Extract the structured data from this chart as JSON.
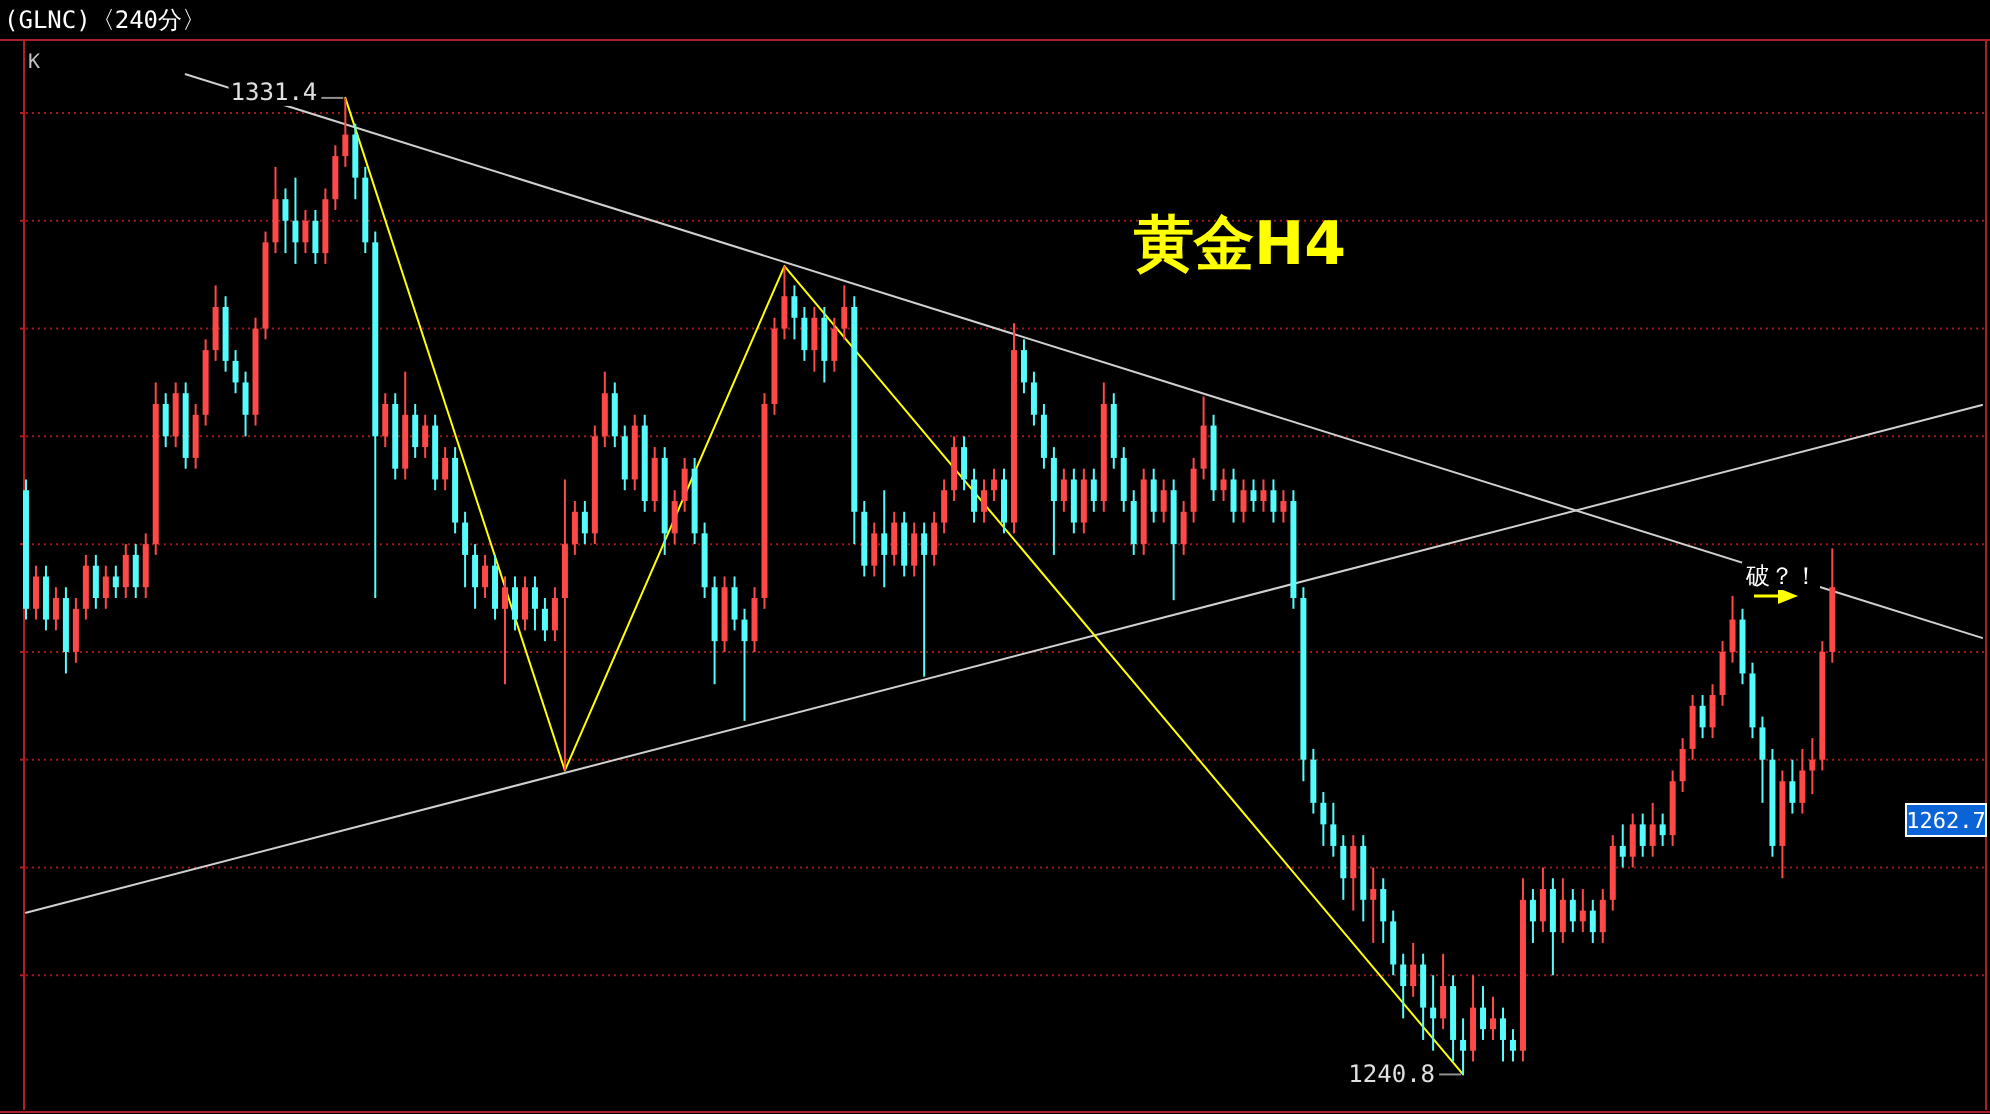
{
  "chart_data": {
    "type": "candlestick",
    "title": "(GLNC)〈240分〉",
    "subtitle": "黄金H4",
    "categories": [
      null,
      null,
      null,
      null,
      null,
      null,
      null,
      null,
      null,
      null,
      null,
      null,
      null,
      null,
      null,
      null,
      null,
      null,
      null,
      null,
      null,
      null,
      null,
      null,
      null,
      null,
      null,
      null,
      null,
      null,
      null,
      null,
      null,
      null,
      null,
      null,
      null,
      null,
      null,
      null,
      null,
      null,
      null,
      null,
      null,
      null,
      null,
      null,
      null,
      null,
      null,
      null,
      null,
      null,
      null,
      null,
      null,
      null,
      null,
      null,
      null,
      null,
      null,
      null,
      null,
      null,
      null,
      null,
      null,
      null,
      null,
      null,
      null,
      null,
      null,
      null,
      null,
      null,
      null,
      null,
      null,
      null,
      null,
      null,
      null,
      null,
      null,
      null,
      null,
      null,
      null,
      null,
      null,
      null,
      null,
      null,
      null,
      null,
      null,
      null,
      null,
      null,
      null,
      null,
      null,
      null,
      null,
      null,
      null,
      null,
      null,
      null,
      null,
      null,
      null,
      null,
      null,
      null,
      null,
      null,
      null,
      null,
      null,
      null,
      null,
      null,
      null,
      null,
      null,
      null,
      null,
      null,
      null,
      null,
      null,
      null,
      null,
      null,
      null,
      null,
      null,
      null,
      null,
      null,
      null,
      null,
      null,
      null,
      null,
      null,
      null,
      null,
      null,
      null,
      null,
      null,
      null,
      null,
      null,
      null,
      null,
      null,
      null,
      null,
      null,
      null,
      null,
      null,
      null,
      null,
      null,
      null,
      null,
      null,
      null,
      null,
      null,
      null,
      null,
      null,
      null,
      null,
      null,
      null,
      null,
      null,
      null,
      null,
      null,
      null,
      null,
      null,
      null,
      null,
      null,
      null,
      null
    ],
    "ohlc": [
      [
        1295,
        1296,
        1283,
        1284
      ],
      [
        1284,
        1288,
        1283,
        1287
      ],
      [
        1287,
        1288,
        1282,
        1283
      ],
      [
        1283,
        1286,
        1282,
        1285
      ],
      [
        1285,
        1286,
        1278,
        1280
      ],
      [
        1280,
        1285,
        1279,
        1284
      ],
      [
        1284,
        1289,
        1283,
        1288
      ],
      [
        1288,
        1289,
        1284,
        1285
      ],
      [
        1285,
        1288,
        1284,
        1287
      ],
      [
        1287,
        1288,
        1285,
        1286
      ],
      [
        1286,
        1290,
        1285,
        1289
      ],
      [
        1289,
        1290,
        1285,
        1286
      ],
      [
        1286,
        1291,
        1285,
        1290
      ],
      [
        1290,
        1305,
        1289,
        1303
      ],
      [
        1303,
        1304,
        1299,
        1300
      ],
      [
        1300,
        1305,
        1299,
        1304
      ],
      [
        1304,
        1305,
        1297,
        1298
      ],
      [
        1298,
        1303,
        1297,
        1302
      ],
      [
        1302,
        1309,
        1301,
        1308
      ],
      [
        1308,
        1314,
        1307,
        1312
      ],
      [
        1312,
        1313,
        1306,
        1307
      ],
      [
        1307,
        1308,
        1304,
        1305
      ],
      [
        1305,
        1306,
        1300,
        1302
      ],
      [
        1302,
        1311,
        1301,
        1310
      ],
      [
        1310,
        1319,
        1309,
        1318
      ],
      [
        1318,
        1325,
        1317,
        1322
      ],
      [
        1322,
        1323,
        1317,
        1320
      ],
      [
        1320,
        1324,
        1316,
        1318
      ],
      [
        1318,
        1321,
        1317,
        1320
      ],
      [
        1320,
        1321,
        1316,
        1317
      ],
      [
        1317,
        1323,
        1316,
        1322
      ],
      [
        1322,
        1327,
        1321,
        1326
      ],
      [
        1326,
        1331.4,
        1325,
        1328
      ],
      [
        1328,
        1329,
        1322,
        1324
      ],
      [
        1324,
        1325,
        1317,
        1318
      ],
      [
        1318,
        1319,
        1285,
        1300
      ],
      [
        1300,
        1304,
        1299,
        1303
      ],
      [
        1303,
        1304,
        1296,
        1297
      ],
      [
        1297,
        1306,
        1296,
        1302
      ],
      [
        1302,
        1303,
        1298,
        1299
      ],
      [
        1299,
        1302,
        1298,
        1301
      ],
      [
        1301,
        1302,
        1295,
        1296
      ],
      [
        1296,
        1299,
        1295,
        1298
      ],
      [
        1298,
        1299,
        1291,
        1292
      ],
      [
        1292,
        1293,
        1286,
        1289
      ],
      [
        1289,
        1290,
        1284,
        1286
      ],
      [
        1286,
        1289,
        1285,
        1288
      ],
      [
        1288,
        1289,
        1283,
        1284
      ],
      [
        1284,
        1287,
        1277,
        1286
      ],
      [
        1286,
        1287,
        1282,
        1283
      ],
      [
        1283,
        1287,
        1282,
        1286
      ],
      [
        1286,
        1287,
        1282,
        1284
      ],
      [
        1284,
        1285,
        1281,
        1282
      ],
      [
        1282,
        1286,
        1281,
        1285
      ],
      [
        1285,
        1296,
        1269,
        1290
      ],
      [
        1290,
        1294,
        1289,
        1293
      ],
      [
        1293,
        1294,
        1290,
        1291
      ],
      [
        1291,
        1301,
        1290,
        1300
      ],
      [
        1300,
        1306,
        1299,
        1304
      ],
      [
        1304,
        1305,
        1299,
        1300
      ],
      [
        1300,
        1301,
        1295,
        1296
      ],
      [
        1296,
        1302,
        1295,
        1301
      ],
      [
        1301,
        1302,
        1293,
        1294
      ],
      [
        1294,
        1299,
        1293,
        1298
      ],
      [
        1298,
        1299,
        1289,
        1291
      ],
      [
        1291,
        1295,
        1290,
        1294
      ],
      [
        1294,
        1298,
        1293,
        1297
      ],
      [
        1297,
        1298,
        1290,
        1291
      ],
      [
        1291,
        1292,
        1285,
        1286
      ],
      [
        1286,
        1287,
        1277,
        1281
      ],
      [
        1281,
        1287,
        1280,
        1286
      ],
      [
        1286,
        1287,
        1282,
        1283
      ],
      [
        1283,
        1284,
        1273.6,
        1281
      ],
      [
        1281,
        1286,
        1280,
        1285
      ],
      [
        1285,
        1304,
        1284,
        1303
      ],
      [
        1303,
        1311,
        1302,
        1310
      ],
      [
        1310,
        1315.8,
        1309,
        1313
      ],
      [
        1313,
        1314,
        1309,
        1311
      ],
      [
        1311,
        1312,
        1307,
        1308
      ],
      [
        1308,
        1312,
        1306,
        1311
      ],
      [
        1311,
        1312,
        1305,
        1307
      ],
      [
        1307,
        1311,
        1306,
        1310
      ],
      [
        1310,
        1314,
        1309,
        1312
      ],
      [
        1312,
        1313,
        1290,
        1293
      ],
      [
        1293,
        1294,
        1287,
        1288
      ],
      [
        1288,
        1292,
        1287,
        1291
      ],
      [
        1291,
        1295,
        1286,
        1289
      ],
      [
        1289,
        1293,
        1288,
        1292
      ],
      [
        1292,
        1293,
        1287,
        1288
      ],
      [
        1288,
        1292,
        1287,
        1291
      ],
      [
        1291,
        1292,
        1277.7,
        1289
      ],
      [
        1289,
        1293,
        1288,
        1292
      ],
      [
        1292,
        1296,
        1291,
        1295
      ],
      [
        1295,
        1300,
        1294,
        1299
      ],
      [
        1299,
        1300,
        1295,
        1296
      ],
      [
        1296,
        1297,
        1292,
        1293
      ],
      [
        1293,
        1296,
        1292,
        1295
      ],
      [
        1295,
        1297,
        1294,
        1296
      ],
      [
        1296,
        1297,
        1291,
        1292
      ],
      [
        1292,
        1310.5,
        1291,
        1308
      ],
      [
        1308,
        1309,
        1304,
        1305
      ],
      [
        1305,
        1306,
        1301,
        1302
      ],
      [
        1302,
        1303,
        1297,
        1298
      ],
      [
        1298,
        1299,
        1289,
        1294
      ],
      [
        1294,
        1297,
        1293,
        1296
      ],
      [
        1296,
        1297,
        1291,
        1292
      ],
      [
        1292,
        1297,
        1291,
        1296
      ],
      [
        1296,
        1297,
        1293,
        1294
      ],
      [
        1294,
        1305,
        1293,
        1303
      ],
      [
        1303,
        1304,
        1297,
        1298
      ],
      [
        1298,
        1299,
        1293,
        1294
      ],
      [
        1294,
        1295,
        1289,
        1290
      ],
      [
        1290,
        1297,
        1289,
        1296
      ],
      [
        1296,
        1297,
        1292,
        1293
      ],
      [
        1293,
        1296,
        1292,
        1295
      ],
      [
        1295,
        1296,
        1284.8,
        1290
      ],
      [
        1290,
        1294,
        1289,
        1293
      ],
      [
        1293,
        1298,
        1292,
        1297
      ],
      [
        1297,
        1303.7,
        1296,
        1301
      ],
      [
        1301,
        1302,
        1294,
        1295
      ],
      [
        1295,
        1297,
        1294,
        1296
      ],
      [
        1296,
        1297,
        1292,
        1293
      ],
      [
        1293,
        1296,
        1292,
        1295
      ],
      [
        1295,
        1296,
        1293,
        1294
      ],
      [
        1294,
        1296,
        1293,
        1295
      ],
      [
        1295,
        1296,
        1292,
        1293
      ],
      [
        1293,
        1295,
        1292,
        1294
      ],
      [
        1294,
        1295,
        1284,
        1285
      ],
      [
        1285,
        1286,
        1268,
        1270
      ],
      [
        1270,
        1271,
        1265,
        1266
      ],
      [
        1266,
        1267,
        1262,
        1264
      ],
      [
        1264,
        1266,
        1261,
        1262
      ],
      [
        1262,
        1263,
        1257,
        1259
      ],
      [
        1259,
        1263,
        1256,
        1262
      ],
      [
        1262,
        1263,
        1255,
        1257
      ],
      [
        1257,
        1260,
        1253,
        1258
      ],
      [
        1258,
        1259,
        1253,
        1255
      ],
      [
        1255,
        1256,
        1250,
        1251
      ],
      [
        1251,
        1252,
        1246,
        1249
      ],
      [
        1249,
        1253,
        1248,
        1251
      ],
      [
        1251,
        1252,
        1244,
        1247
      ],
      [
        1247,
        1250,
        1243,
        1246
      ],
      [
        1246,
        1252,
        1245,
        1249
      ],
      [
        1249,
        1250,
        1242,
        1244
      ],
      [
        1244,
        1246,
        1240.8,
        1243
      ],
      [
        1243,
        1250,
        1242,
        1247
      ],
      [
        1247,
        1249,
        1244,
        1245
      ],
      [
        1245,
        1248,
        1244,
        1246
      ],
      [
        1246,
        1247,
        1242,
        1244
      ],
      [
        1244,
        1245,
        1242,
        1243
      ],
      [
        1243,
        1259,
        1242,
        1257
      ],
      [
        1257,
        1258,
        1253,
        1255
      ],
      [
        1255,
        1260,
        1254,
        1258
      ],
      [
        1258,
        1259,
        1250,
        1254
      ],
      [
        1254,
        1259,
        1253,
        1257
      ],
      [
        1257,
        1258,
        1254,
        1255
      ],
      [
        1255,
        1258,
        1254,
        1256
      ],
      [
        1256,
        1257,
        1253,
        1254
      ],
      [
        1254,
        1258,
        1253,
        1257
      ],
      [
        1257,
        1263,
        1256,
        1262
      ],
      [
        1262,
        1264,
        1260,
        1261
      ],
      [
        1261,
        1265,
        1260,
        1264
      ],
      [
        1264,
        1265,
        1261,
        1262
      ],
      [
        1262,
        1266,
        1261,
        1264
      ],
      [
        1264,
        1265,
        1262,
        1263
      ],
      [
        1263,
        1269,
        1262,
        1268
      ],
      [
        1268,
        1272,
        1267,
        1271
      ],
      [
        1271,
        1276,
        1270,
        1275
      ],
      [
        1275,
        1276,
        1272,
        1273
      ],
      [
        1273,
        1277,
        1272,
        1276
      ],
      [
        1276,
        1281,
        1275,
        1280
      ],
      [
        1280,
        1285.2,
        1279,
        1283
      ],
      [
        1283,
        1284,
        1277,
        1278
      ],
      [
        1278,
        1279,
        1272,
        1273
      ],
      [
        1273,
        1274,
        1266,
        1270
      ],
      [
        1270,
        1271,
        1261,
        1262
      ],
      [
        1262,
        1269,
        1259,
        1268
      ],
      [
        1268,
        1270,
        1265,
        1266
      ],
      [
        1266,
        1271,
        1265,
        1269
      ],
      [
        1269,
        1272,
        1266.8,
        1270
      ],
      [
        1270,
        1281,
        1269,
        1280
      ],
      [
        1280,
        1289.6,
        1279,
        1286
      ],
      null,
      null,
      null,
      null,
      null,
      null,
      null,
      null,
      null,
      null,
      null,
      null,
      null,
      null,
      null
    ],
    "series": [
      {
        "type": "line",
        "color": "#d0d0d0",
        "values": [
          null,
          null,
          null,
          null,
          null,
          null,
          null,
          null,
          null,
          null,
          null,
          null,
          null,
          null,
          null,
          null,
          1333.6,
          null,
          null,
          null,
          null,
          null,
          null,
          null,
          null,
          null,
          null,
          null,
          null,
          null,
          null,
          null,
          null,
          null,
          null,
          null,
          null,
          null,
          null,
          null,
          null,
          null,
          null,
          null,
          null,
          null,
          null,
          null,
          null,
          null,
          null,
          null,
          null,
          null,
          null,
          null,
          null,
          null,
          null,
          null,
          null,
          null,
          null,
          null,
          null,
          null,
          null,
          null,
          null,
          null,
          null,
          null,
          null,
          null,
          null,
          null,
          null,
          null,
          null,
          null,
          null,
          null,
          null,
          null,
          null,
          null,
          null,
          null,
          null,
          null,
          null,
          null,
          null,
          null,
          null,
          null,
          null,
          null,
          null,
          null,
          null,
          null,
          null,
          null,
          null,
          null,
          null,
          null,
          null,
          null,
          null,
          null,
          null,
          null,
          null,
          null,
          null,
          null,
          null,
          null,
          null,
          null,
          null,
          null,
          null,
          null,
          null,
          null,
          null,
          null,
          null,
          null,
          null,
          null,
          null,
          null,
          null,
          null,
          null,
          null,
          null,
          null,
          null,
          null,
          null,
          null,
          null,
          null,
          null,
          null,
          null,
          null,
          null,
          null,
          null,
          null,
          null,
          null,
          null,
          null,
          null,
          null,
          null,
          null,
          null,
          null,
          null,
          null,
          null,
          null,
          null,
          null,
          null,
          null,
          null,
          null,
          null,
          null,
          null,
          null,
          null,
          null,
          null,
          null,
          null,
          null,
          null,
          null,
          null,
          null,
          null,
          null,
          null,
          null,
          null,
          null,
          1281.3
        ]
      },
      {
        "type": "line",
        "color": "#d0d0d0",
        "values": [
          1255.8,
          null,
          null,
          null,
          null,
          null,
          null,
          null,
          null,
          null,
          null,
          null,
          null,
          null,
          null,
          null,
          null,
          null,
          null,
          null,
          null,
          null,
          null,
          null,
          null,
          null,
          null,
          null,
          null,
          null,
          null,
          null,
          null,
          null,
          null,
          null,
          null,
          null,
          null,
          null,
          null,
          null,
          null,
          null,
          null,
          null,
          null,
          null,
          null,
          null,
          null,
          null,
          null,
          null,
          null,
          null,
          null,
          null,
          null,
          null,
          null,
          null,
          null,
          null,
          null,
          null,
          null,
          null,
          null,
          null,
          null,
          null,
          null,
          null,
          null,
          null,
          null,
          null,
          null,
          null,
          null,
          null,
          null,
          null,
          null,
          null,
          null,
          null,
          null,
          null,
          null,
          null,
          null,
          null,
          null,
          null,
          null,
          null,
          null,
          null,
          null,
          null,
          null,
          null,
          null,
          null,
          null,
          null,
          null,
          null,
          null,
          null,
          null,
          null,
          null,
          null,
          null,
          null,
          null,
          null,
          null,
          null,
          null,
          null,
          null,
          null,
          null,
          null,
          null,
          null,
          null,
          null,
          null,
          null,
          null,
          null,
          null,
          null,
          null,
          null,
          null,
          null,
          null,
          null,
          null,
          null,
          null,
          null,
          null,
          null,
          null,
          null,
          null,
          null,
          null,
          null,
          null,
          null,
          null,
          null,
          null,
          null,
          null,
          null,
          null,
          null,
          null,
          null,
          null,
          null,
          null,
          null,
          null,
          null,
          null,
          null,
          null,
          null,
          null,
          null,
          null,
          null,
          null,
          null,
          null,
          null,
          null,
          null,
          null,
          null,
          null,
          null,
          null,
          null,
          null,
          null,
          1302.9
        ]
      },
      {
        "type": "line",
        "color": "#ffff00",
        "values": [
          null,
          null,
          null,
          null,
          null,
          null,
          null,
          null,
          null,
          null,
          null,
          null,
          null,
          null,
          null,
          null,
          null,
          null,
          null,
          null,
          null,
          null,
          null,
          null,
          null,
          null,
          null,
          null,
          null,
          null,
          null,
          null,
          1331.4,
          null,
          null,
          null,
          null,
          null,
          null,
          null,
          null,
          null,
          null,
          null,
          null,
          null,
          null,
          null,
          null,
          null,
          null,
          null,
          null,
          null,
          1269,
          null,
          null,
          null,
          null,
          null,
          null,
          null,
          null,
          null,
          null,
          null,
          null,
          null,
          null,
          null,
          null,
          null,
          null,
          null,
          null,
          null,
          1315.8,
          null,
          null,
          null,
          null,
          null,
          null,
          null,
          null,
          null,
          null,
          null,
          null,
          null,
          null,
          null,
          null,
          null,
          null,
          null,
          null,
          null,
          null,
          null,
          null,
          null,
          null,
          null,
          null,
          null,
          null,
          null,
          null,
          null,
          null,
          null,
          null,
          null,
          null,
          null,
          null,
          null,
          null,
          null,
          null,
          null,
          null,
          null,
          null,
          null,
          null,
          null,
          null,
          null,
          null,
          null,
          null,
          null,
          null,
          null,
          null,
          null,
          null,
          null,
          null,
          null,
          null,
          null,
          1240.8,
          null,
          null,
          null,
          null,
          null,
          null,
          null,
          null,
          null,
          null,
          null,
          null,
          null,
          null,
          null,
          null,
          null,
          null,
          null,
          null,
          null,
          null,
          null,
          null,
          null,
          null,
          null,
          null,
          null,
          null,
          null,
          null,
          null,
          null,
          null,
          null,
          null,
          null,
          null,
          null,
          null,
          null,
          null,
          null,
          null,
          null,
          null,
          null,
          null,
          null,
          null,
          null
        ]
      }
    ],
    "ylim": [
      1237.5,
      1336.4
    ],
    "yticks": [
      {
        "value": 1250,
        "label": null
      },
      {
        "value": 1260,
        "label": null
      },
      {
        "value": 1270,
        "label": null
      },
      {
        "value": 1280,
        "label": null
      },
      {
        "value": 1290,
        "label": null
      },
      {
        "value": 1300,
        "label": null
      },
      {
        "value": 1310,
        "label": null
      },
      {
        "value": 1320,
        "label": null
      },
      {
        "value": 1330,
        "label": null
      }
    ],
    "grid": "y",
    "line_style": "solid",
    "annotations": [
      "K",
      "1331.4",
      "1240.8",
      "破？！",
      "1262.7"
    ]
  }
}
